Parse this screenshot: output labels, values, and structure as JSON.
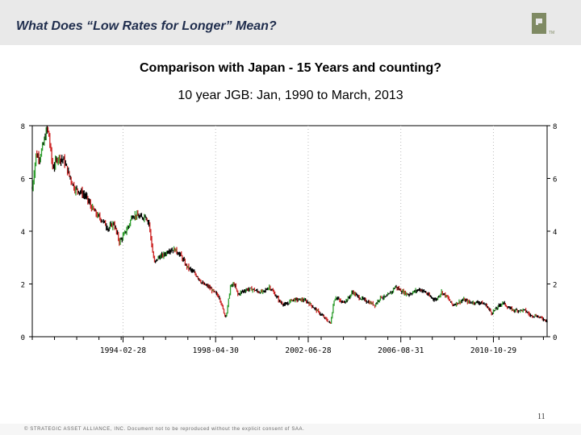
{
  "header": {
    "title": "What Does “Low Rates for Longer” Mean?",
    "band_color": "#e9e9e9",
    "logo_icon": "saa-logo-icon"
  },
  "chart_heading": {
    "line1": "Comparison with Japan - 15 Years and counting?",
    "line2": "10 year JGB: Jan, 1990 to March, 2013"
  },
  "chart_data": {
    "type": "line",
    "style": "ohlc-bars",
    "title": "10 year JGB: Jan, 1990 to March, 2013",
    "xlabel": "",
    "ylabel": "",
    "xlim": [
      "1990-01",
      "2013-03"
    ],
    "ylim": [
      0,
      8
    ],
    "y_ticks": [
      0,
      2,
      4,
      6,
      8
    ],
    "y_axis_sides": [
      "left",
      "right"
    ],
    "x_tick_labels": [
      "1994-02-28",
      "1998-04-30",
      "2002-06-28",
      "2006-08-31",
      "2010-10-29"
    ],
    "grid": "vertical-dotted",
    "legend": "none",
    "colors": {
      "up": "#2e9e2e",
      "down": "#cc2222",
      "bar": "#000000"
    },
    "series": [
      {
        "x": [
          "1990-01",
          "1990-03",
          "1990-05",
          "1990-07",
          "1990-09",
          "1990-10",
          "1990-12",
          "1991-03",
          "1991-06",
          "1991-09",
          "1991-12",
          "1992-03",
          "1992-06",
          "1992-09",
          "1992-12",
          "1993-03",
          "1993-06",
          "1993-09",
          "1993-12",
          "1994-02",
          "1994-05",
          "1994-07",
          "1994-09",
          "1994-12",
          "1995-02",
          "1995-04",
          "1995-06",
          "1995-07",
          "1995-09",
          "1995-12",
          "1996-03",
          "1996-06",
          "1996-09",
          "1996-12",
          "1997-03",
          "1997-06",
          "1997-09",
          "1997-12",
          "1998-03",
          "1998-06",
          "1998-09",
          "1998-10",
          "1998-12",
          "1999-02",
          "1999-04",
          "1999-06",
          "1999-09",
          "1999-12",
          "2000-03",
          "2000-06",
          "2000-09",
          "2000-12",
          "2001-03",
          "2001-06",
          "2001-09",
          "2001-12",
          "2002-03",
          "2002-06",
          "2002-09",
          "2002-12",
          "2003-03",
          "2003-06",
          "2003-08",
          "2003-09",
          "2003-12",
          "2004-03",
          "2004-06",
          "2004-09",
          "2004-12",
          "2005-03",
          "2005-06",
          "2005-09",
          "2005-12",
          "2006-03",
          "2006-05",
          "2006-09",
          "2006-12",
          "2007-03",
          "2007-06",
          "2007-09",
          "2007-12",
          "2008-03",
          "2008-06",
          "2008-09",
          "2008-12",
          "2009-03",
          "2009-06",
          "2009-09",
          "2009-12",
          "2010-03",
          "2010-06",
          "2010-09",
          "2010-12",
          "2011-03",
          "2011-06",
          "2011-09",
          "2011-12",
          "2012-03",
          "2012-06",
          "2012-09",
          "2012-12",
          "2013-03"
        ],
        "values": [
          5.6,
          6.9,
          6.8,
          7.3,
          7.9,
          7.6,
          6.4,
          6.8,
          6.7,
          6.1,
          5.6,
          5.5,
          5.3,
          4.9,
          4.6,
          4.4,
          4.1,
          4.3,
          3.6,
          3.8,
          4.2,
          4.6,
          4.6,
          4.5,
          4.6,
          4.3,
          3.2,
          2.8,
          3.0,
          3.1,
          3.3,
          3.3,
          3.1,
          2.7,
          2.5,
          2.3,
          2.0,
          1.9,
          1.7,
          1.5,
          0.8,
          0.9,
          1.9,
          2.0,
          1.6,
          1.7,
          1.8,
          1.8,
          1.7,
          1.7,
          1.9,
          1.6,
          1.3,
          1.2,
          1.4,
          1.4,
          1.4,
          1.3,
          1.1,
          0.9,
          0.7,
          0.5,
          1.4,
          1.5,
          1.3,
          1.4,
          1.7,
          1.5,
          1.4,
          1.3,
          1.2,
          1.5,
          1.5,
          1.7,
          1.9,
          1.7,
          1.6,
          1.7,
          1.8,
          1.7,
          1.5,
          1.4,
          1.7,
          1.5,
          1.2,
          1.3,
          1.4,
          1.3,
          1.3,
          1.3,
          1.2,
          0.9,
          1.1,
          1.3,
          1.1,
          1.0,
          1.0,
          1.0,
          0.8,
          0.8,
          0.7,
          0.6
        ]
      }
    ]
  },
  "page_number": "11",
  "footer": "© STRATEGIC ASSET ALLIANCE, INC.  Document not to be reproduced without the explicit consent of SAA."
}
